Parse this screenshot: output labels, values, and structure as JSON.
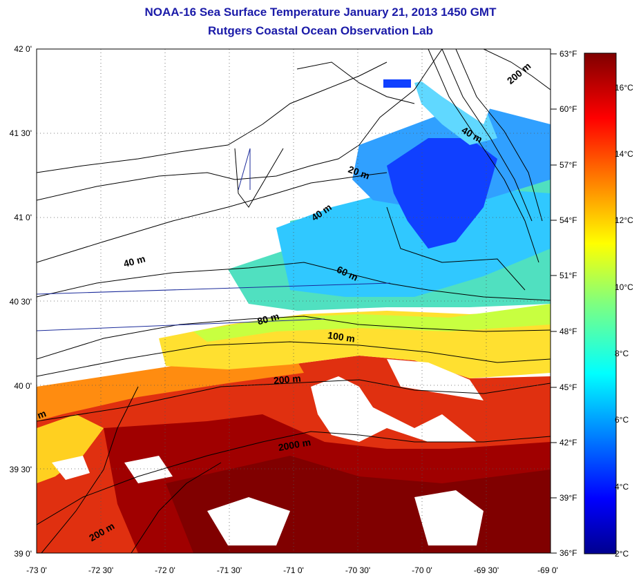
{
  "title_line1": "NOAA-16 Sea Surface Temperature January 21, 2013 1450 GMT",
  "title_line2": "Rutgers Coastal Ocean Observation Lab",
  "lat_ticks": [
    "42 0'",
    "41 30'",
    "41 0'",
    "40 30'",
    "40 0'",
    "39 30'",
    "39 0'"
  ],
  "lon_ticks": [
    "-73 0'",
    "-72 30'",
    "-72 0'",
    "-71 30'",
    "-71 0'",
    "-70 30'",
    "-70 0'",
    "-69 30'",
    "-69 0'"
  ],
  "fahrenheit_ticks": [
    "63°F",
    "60°F",
    "57°F",
    "54°F",
    "51°F",
    "48°F",
    "45°F",
    "42°F",
    "39°F",
    "36°F"
  ],
  "celsius_ticks": [
    "16°C",
    "14°C",
    "12°C",
    "10°C",
    "8°C",
    "6°C",
    "4°C",
    "2°C"
  ],
  "contour_labels": [
    "200 m",
    "40 m",
    "20 m",
    "40 m",
    "40 m",
    "60 m",
    "80 m",
    "100 m",
    "200 m",
    "2000 m",
    "200 m",
    "m"
  ],
  "colors": {
    "title": "#1a1aa8",
    "colormap": "jet",
    "land": "#ffffff",
    "contour": "#000000",
    "transect": "#1a2a9a"
  },
  "map_extent": {
    "lon": [
      -73,
      -69
    ],
    "lat": [
      39,
      42
    ]
  },
  "colorbar_range": {
    "celsius": [
      2,
      17.2
    ],
    "fahrenheit": [
      36,
      63
    ]
  }
}
